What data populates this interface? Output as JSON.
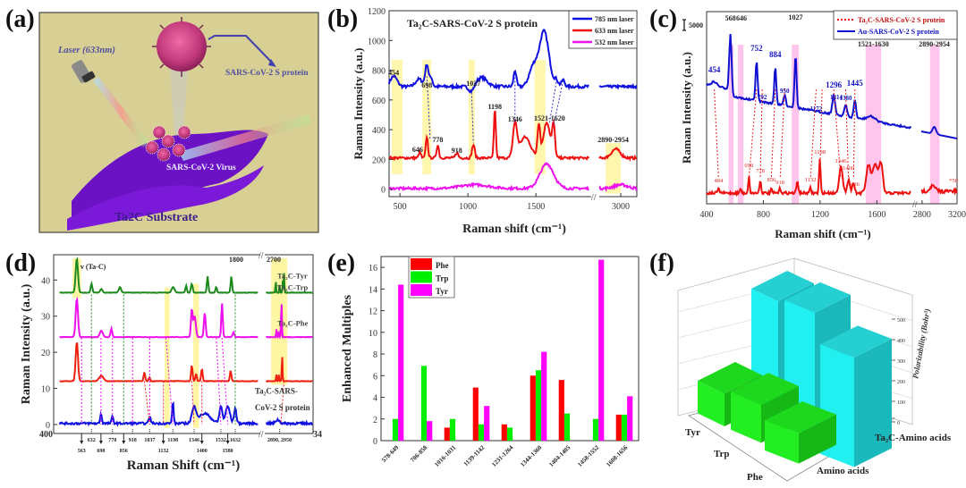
{
  "panels": {
    "a": {
      "label": "(a)",
      "laser": "Laser (633nm)",
      "protein": "SARS-CoV-2 S protein",
      "virus": "SARS-CoV-2 Virus",
      "substrate": "Ta2C Substrate",
      "colors": {
        "bg": "#d8cf94",
        "substrate": "#6a12c4",
        "virus": "#c0387a"
      }
    },
    "b": {
      "label": "(b)"
    },
    "c": {
      "label": "(c)"
    },
    "d": {
      "label": "(d)"
    },
    "e": {
      "label": "(e)"
    },
    "f": {
      "label": "(f)"
    }
  },
  "chart_data": [
    {
      "id": "b",
      "type": "line",
      "title": "Ta2C-SARS-CoV-2 S protein",
      "xlabel": "Raman shift (cm-1)",
      "ylabel": "Raman Intensity (a.u.)",
      "ylim": [
        -50,
        1200
      ],
      "yticks": [
        0,
        200,
        400,
        600,
        800,
        1000,
        1200
      ],
      "xticks": [
        "500",
        "1000",
        "1500",
        "3000"
      ],
      "x_break": "//",
      "legend": [
        "785 nm laser",
        "633 nm laser",
        "532 nm laser"
      ],
      "legend_position": "top-right",
      "series": [
        {
          "name": "785 nm laser",
          "color": "#1010e0",
          "baseline": 690,
          "peaks": [
            [
              454,
              760
            ],
            [
              698,
              840
            ],
            [
              1027,
              660
            ],
            [
              1198,
              750
            ],
            [
              1346,
              800
            ],
            [
              1560,
              1060
            ],
            [
              1640,
              730
            ]
          ]
        },
        {
          "name": "633 nm laser",
          "color": "#ee1010",
          "baseline": 210,
          "peaks": [
            [
              646,
              250
            ],
            [
              698,
              350
            ],
            [
              778,
              300
            ],
            [
              918,
              245
            ],
            [
              1040,
              300
            ],
            [
              1198,
              540
            ],
            [
              1346,
              430
            ],
            [
              1521,
              430
            ],
            [
              1580,
              450
            ],
            [
              1630,
              420
            ],
            [
              2954,
              270
            ]
          ]
        },
        {
          "name": "532 nm laser",
          "color": "#ee10ee",
          "baseline": 5,
          "peaks": [
            [
              1580,
              170
            ]
          ]
        }
      ],
      "annotations": [
        "454",
        "698",
        "1027",
        "646",
        "778",
        "918",
        "1198",
        "1346",
        "1521-1620",
        "2890-2954"
      ],
      "highlight_bands": [
        "454",
        "698",
        "1027",
        "1521-1620",
        "2890-2954"
      ]
    },
    {
      "id": "c",
      "type": "line",
      "xlabel": "Raman shift (cm-1)",
      "ylabel": "Raman Intensity (a.u.)",
      "scale_bar": "5000",
      "xticks": [
        "400",
        "800",
        "1200",
        "1600",
        "2800",
        "3200"
      ],
      "legend": [
        "Ta2C-SARS-CoV-2 S protein",
        "Au-SARS-CoV-2 S protein"
      ],
      "legend_position": "top-right",
      "series": [
        {
          "name": "Au-SARS-CoV-2 S protein",
          "color": "#1010d0",
          "peaks": [
            "454",
            "568",
            "752",
            "884",
            "950",
            "1027",
            "1172",
            "1314",
            "1296",
            "1380",
            "1445"
          ]
        },
        {
          "name": "Ta2C-SARS-CoV-2 S protein",
          "color": "#ee1010",
          "peaks": [
            "484",
            "698",
            "778",
            "856",
            "918",
            "1132",
            "1198",
            "1346",
            "1400",
            "1436"
          ],
          "scale": "*50"
        }
      ],
      "annotations_top": [
        "568",
        "646",
        "1027",
        "1521-1630",
        "2890-2954"
      ],
      "au_labels": [
        "454",
        "752",
        "884",
        "950",
        "1296",
        "1445",
        "792",
        "1172",
        "1314",
        "1380"
      ],
      "ta_labels": [
        "484",
        "698",
        "778",
        "856",
        "918",
        "1132",
        "1198",
        "1346",
        "1400",
        "1436",
        "*50"
      ]
    },
    {
      "id": "d",
      "type": "line",
      "xlabel": "Raman Shift (cm-1)",
      "ylabel": "Raman Intensity (a.u.)",
      "ylim": [
        -2,
        46
      ],
      "yticks": [
        0,
        10,
        20,
        30,
        40
      ],
      "x_start": "400",
      "x_end": "3450",
      "x_break": [
        "1800",
        "2700"
      ],
      "annotation": "v (Ta-C)",
      "series": [
        {
          "name": "Ta2C-Tyr",
          "color": "#1e8a1e",
          "baseline": 36.5
        },
        {
          "name": "Ta2C-Trp",
          "color": "#ee10ee",
          "baseline": 24.2
        },
        {
          "name": "Ta2C-Phe",
          "color": "#ee2010",
          "baseline": 12
        },
        {
          "name": "Ta2C-SARS-CoV-2 S protein",
          "color": "#1010e0",
          "baseline": 0.3
        }
      ],
      "upper_tick_labels": [
        "632",
        "778",
        "918",
        "1037",
        "1198",
        "1346",
        "1532",
        "1632",
        "2890, 2950"
      ],
      "lower_tick_labels": [
        "563",
        "698",
        "856",
        "1132",
        "1400",
        "1580"
      ]
    },
    {
      "id": "e",
      "type": "bar",
      "ylabel": "Enhanced Multiples",
      "ylim": [
        0,
        17
      ],
      "yticks": [
        0,
        2,
        4,
        6,
        8,
        10,
        12,
        14,
        16
      ],
      "categories": [
        "578-649",
        "706-858",
        "1016-1031",
        "1139-1142",
        "1231-1264",
        "1344-1360",
        "1404-1405",
        "1458-1552",
        "1608-1656"
      ],
      "legend_position": "top-left",
      "series": [
        {
          "name": "Phe",
          "color": "#ff0000",
          "values": [
            0,
            0,
            1.2,
            4.9,
            1.5,
            6.0,
            5.6,
            0,
            2.4
          ]
        },
        {
          "name": "Trp",
          "color": "#00ee00",
          "values": [
            2.0,
            6.9,
            2.0,
            1.5,
            1.2,
            6.5,
            2.5,
            2.0,
            2.4
          ]
        },
        {
          "name": "Tyr",
          "color": "#ff00ff",
          "values": [
            14.4,
            1.8,
            0,
            3.2,
            0,
            8.2,
            0,
            16.7,
            4.1
          ]
        }
      ]
    },
    {
      "id": "f",
      "type": "bar",
      "subtype": "3d-bar",
      "zlabel": "Polarizability (Bohr3)",
      "zticks": [
        0,
        100,
        200,
        300,
        400,
        500
      ],
      "zlim": [
        0,
        550
      ],
      "x_categories": [
        "Amino acids",
        "Ta2C-Amino acids"
      ],
      "y_categories": [
        "Tyr",
        "Trp",
        "Phe"
      ],
      "series": [
        {
          "name": "Amino acids",
          "color": "#22ee22",
          "values": {
            "Tyr": 190,
            "Trp": 185,
            "Phe": 170
          }
        },
        {
          "name": "Ta2C-Amino acids",
          "color": "#22f0f0",
          "values": {
            "Tyr": 560,
            "Trp": 545,
            "Phe": 480
          }
        }
      ]
    }
  ]
}
